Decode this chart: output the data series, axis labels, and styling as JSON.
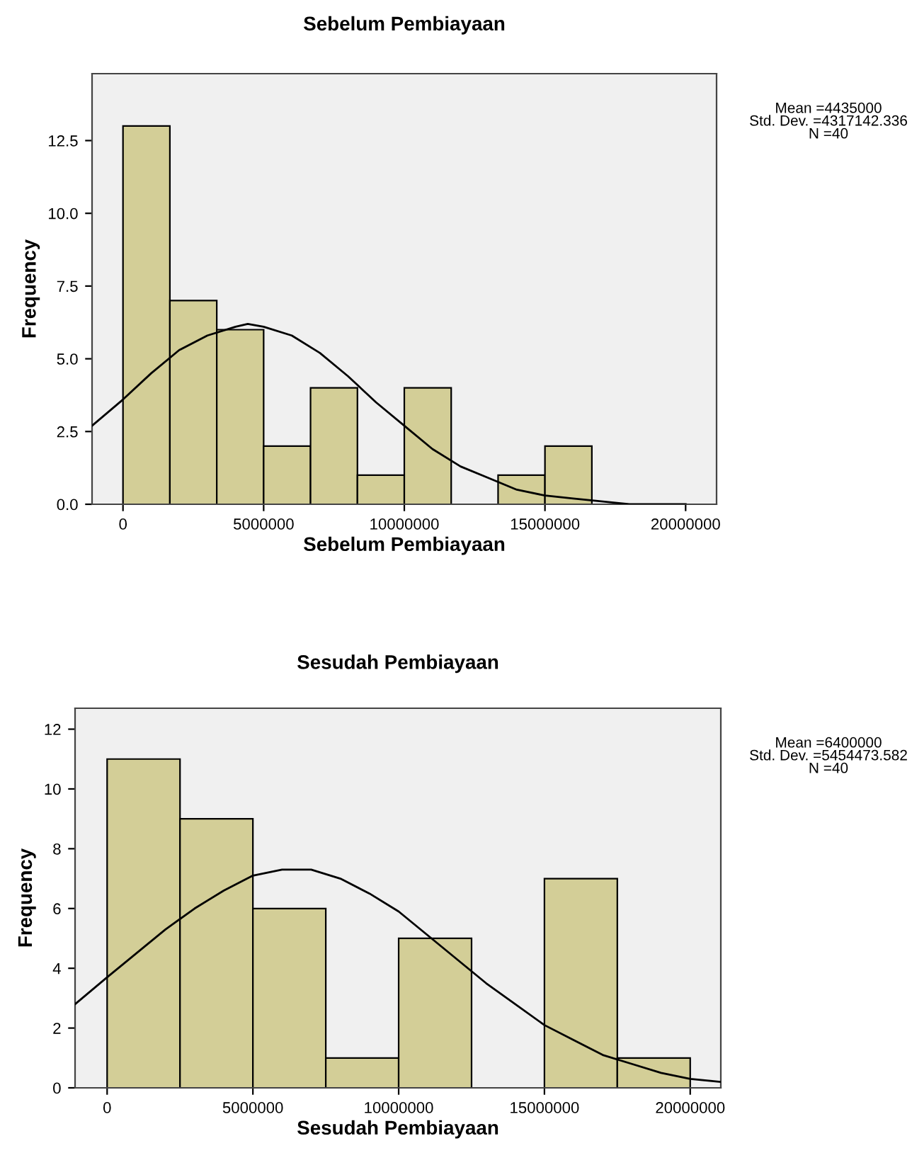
{
  "chart_data": [
    {
      "type": "histogram",
      "title": "Sebelum Pembiayaan",
      "xlabel": "Sebelum Pembiayaan",
      "ylabel": "Frequency",
      "annotations": [
        "Mean =4435000",
        "Std. Dev. =4317142.336",
        "N =40"
      ],
      "series": [
        {
          "type": "histogram",
          "color": "#d3ce97",
          "bins": [
            0,
            1666667,
            3333333,
            5000000,
            6666667,
            8333333,
            10000000,
            11666667,
            13333333,
            15000000,
            16666667
          ],
          "values": [
            13,
            7,
            6,
            2,
            4,
            1,
            4,
            0,
            1,
            2
          ]
        },
        {
          "type": "line",
          "color": "#000000",
          "x": [
            -1100000,
            0,
            1000000,
            2000000,
            3000000,
            4000000,
            4435000,
            5000000,
            6000000,
            7000000,
            8000000,
            9000000,
            10000000,
            11000000,
            12000000,
            13000000,
            14000000,
            15000000,
            16000000,
            17000000,
            18000000,
            19000000,
            20000000
          ],
          "values": [
            2.7,
            3.6,
            4.5,
            5.3,
            5.8,
            6.1,
            6.2,
            6.1,
            5.8,
            5.2,
            4.4,
            3.5,
            2.7,
            1.9,
            1.3,
            0.9,
            0.5,
            0.3,
            0.2,
            0.1,
            0.0,
            0.0,
            0.0
          ]
        }
      ],
      "xlim": [
        -1100000,
        21100000
      ],
      "xticks": [
        0,
        5000000,
        10000000,
        15000000,
        20000000
      ],
      "ylim": [
        0,
        14.8
      ],
      "yticks": [
        {
          "value": 0,
          "label": "0.0"
        },
        {
          "value": 2.5,
          "label": "2.5"
        },
        {
          "value": 5,
          "label": "5.0"
        },
        {
          "value": 7.5,
          "label": "7.5"
        },
        {
          "value": 10,
          "label": "10.0"
        },
        {
          "value": 12.5,
          "label": "12.5"
        }
      ],
      "grid": false,
      "legend": false
    },
    {
      "type": "histogram",
      "title": "Sesudah Pembiayaan",
      "xlabel": "Sesudah Pembiayaan",
      "ylabel": "Frequency",
      "annotations": [
        "Mean =6400000",
        "Std. Dev. =5454473.582",
        "N =40"
      ],
      "series": [
        {
          "type": "histogram",
          "color": "#d3ce97",
          "bins": [
            0,
            2500000,
            5000000,
            7500000,
            10000000,
            12500000,
            15000000,
            17500000,
            20000000
          ],
          "values": [
            11,
            9,
            6,
            1,
            5,
            0,
            7,
            1
          ]
        },
        {
          "type": "line",
          "color": "#000000",
          "x": [
            -1100000,
            0,
            1000000,
            2000000,
            3000000,
            4000000,
            5000000,
            6000000,
            6400000,
            7000000,
            8000000,
            9000000,
            10000000,
            11000000,
            12000000,
            13000000,
            14000000,
            15000000,
            16000000,
            17000000,
            18000000,
            19000000,
            20000000,
            21050000
          ],
          "values": [
            2.8,
            3.7,
            4.5,
            5.3,
            6.0,
            6.6,
            7.1,
            7.3,
            7.3,
            7.3,
            7.0,
            6.5,
            5.9,
            5.1,
            4.3,
            3.5,
            2.8,
            2.1,
            1.6,
            1.1,
            0.8,
            0.5,
            0.3,
            0.2
          ]
        }
      ],
      "xlim": [
        -1100000,
        21050000
      ],
      "xticks": [
        0,
        5000000,
        10000000,
        15000000,
        20000000
      ],
      "ylim": [
        0,
        12.7
      ],
      "yticks": [
        0,
        2,
        4,
        6,
        8,
        10,
        12
      ],
      "grid": false,
      "legend": false
    }
  ]
}
